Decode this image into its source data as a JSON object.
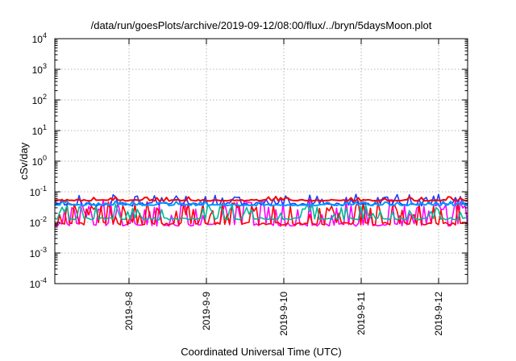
{
  "chart_data": {
    "type": "line",
    "title": "/data/run/goesPlots/archive/2019-09-12/08:00/flux/../bryn/5daysMoon.plot",
    "xlabel": "Coordinated Universal Time (UTC)",
    "ylabel": "cSv/day",
    "yscale": "log",
    "ylim": [
      0.0001,
      10000
    ],
    "xlim": [
      "2019-09-07 01:00",
      "2019-09-12 09:00"
    ],
    "grid": true,
    "y_ticks": [
      {
        "base": "10",
        "exp": "-4"
      },
      {
        "base": "10",
        "exp": "-3"
      },
      {
        "base": "10",
        "exp": "-2"
      },
      {
        "base": "10",
        "exp": "-1"
      },
      {
        "base": "10",
        "exp": "0"
      },
      {
        "base": "10",
        "exp": "1"
      },
      {
        "base": "10",
        "exp": "2"
      },
      {
        "base": "10",
        "exp": "3"
      },
      {
        "base": "10",
        "exp": "4"
      }
    ],
    "x_ticks": [
      "2019-9-8",
      "2019-9-9",
      "2019-9-10",
      "2019-9-11",
      "2019-9-12"
    ],
    "series": [
      {
        "color": "#ff00ff",
        "baseline": 0.0075,
        "spike_top": 0.055,
        "variation": "high"
      },
      {
        "color": "#ff0000",
        "baseline": 0.0082,
        "spike_top": 0.05,
        "variation": "high"
      },
      {
        "color": "#00bb99",
        "baseline": 0.012,
        "spike_top": 0.04,
        "variation": "medium"
      },
      {
        "color": "#1a3cff",
        "baseline": 0.04,
        "spike_top": 0.085,
        "variation": "spiky"
      },
      {
        "color": "#0099ff",
        "baseline": 0.035,
        "spike_top": 0.05,
        "variation": "low"
      },
      {
        "color": "#ff0000",
        "baseline": 0.05,
        "spike_top": 0.07,
        "variation": "low"
      }
    ]
  }
}
